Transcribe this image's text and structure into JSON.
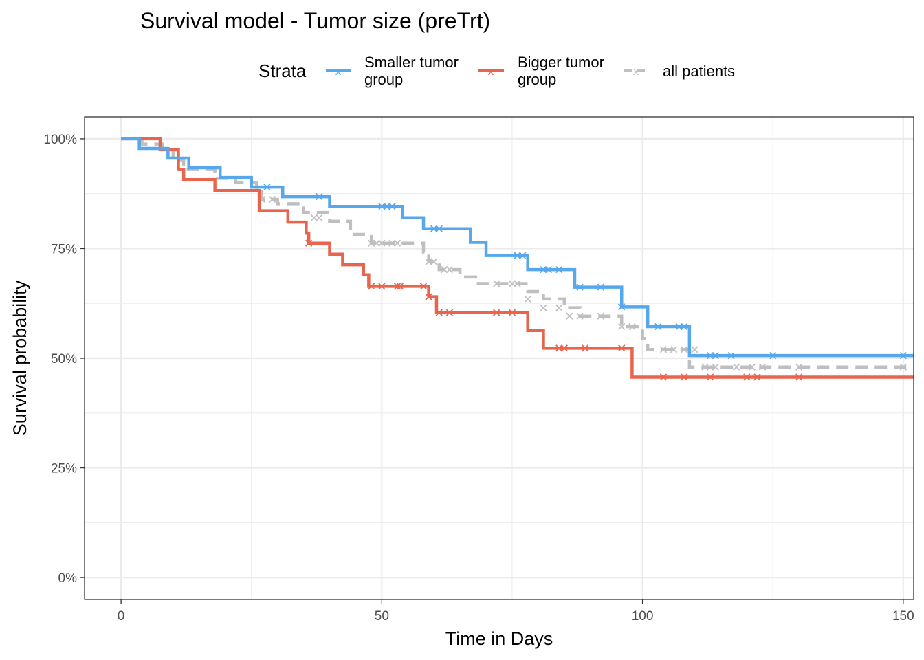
{
  "chart_data": {
    "type": "line",
    "subtype": "kaplan-meier-step",
    "title": "Survival model - Tumor size (preTrt)",
    "xlabel": "Time in Days",
    "ylabel": "Survival probability",
    "xlim": [
      -7,
      152
    ],
    "ylim": [
      -0.05,
      1.05
    ],
    "x_ticks": [
      0,
      50,
      100,
      150
    ],
    "x_tick_labels": [
      "0",
      "50",
      "100",
      "150"
    ],
    "y_ticks": [
      0,
      0.25,
      0.5,
      0.75,
      1.0
    ],
    "y_tick_labels": [
      "0%",
      "25%",
      "50%",
      "75%",
      "100%"
    ],
    "grid": true,
    "legend": {
      "title": "Strata",
      "position": "top",
      "entries": [
        {
          "label_line1": "Smaller tumor",
          "label_line2": "group"
        },
        {
          "label_line1": "Bigger tumor",
          "label_line2": "group"
        },
        {
          "label_line1": "all patients",
          "label_line2": ""
        }
      ]
    },
    "series": [
      {
        "key": "smaller",
        "color": "#56a7eb",
        "dashed": false,
        "steps": [
          [
            0,
            1.0
          ],
          [
            3.5,
            0.978
          ],
          [
            9,
            0.956
          ],
          [
            13,
            0.934
          ],
          [
            19,
            0.912
          ],
          [
            25,
            0.89
          ],
          [
            31,
            0.868
          ],
          [
            40,
            0.846
          ],
          [
            54,
            0.82
          ],
          [
            58,
            0.795
          ],
          [
            67,
            0.764
          ],
          [
            70,
            0.734
          ],
          [
            78,
            0.702
          ],
          [
            87,
            0.662
          ],
          [
            96,
            0.617
          ],
          [
            101,
            0.572
          ],
          [
            109,
            0.506
          ]
        ],
        "censor": [
          [
            28,
            0.89
          ],
          [
            38,
            0.868
          ],
          [
            50,
            0.846
          ],
          [
            51,
            0.846
          ],
          [
            52,
            0.846
          ],
          [
            60,
            0.795
          ],
          [
            61,
            0.795
          ],
          [
            76,
            0.734
          ],
          [
            77,
            0.734
          ],
          [
            81,
            0.702
          ],
          [
            82,
            0.702
          ],
          [
            84,
            0.702
          ],
          [
            88,
            0.662
          ],
          [
            92,
            0.662
          ],
          [
            96,
            0.617
          ],
          [
            103,
            0.572
          ],
          [
            107,
            0.572
          ],
          [
            108,
            0.572
          ],
          [
            113,
            0.506
          ],
          [
            114,
            0.506
          ],
          [
            117,
            0.506
          ],
          [
            125,
            0.506
          ],
          [
            150,
            0.506
          ]
        ]
      },
      {
        "key": "bigger",
        "color": "#e8644d",
        "dashed": false,
        "steps": [
          [
            0,
            1.0
          ],
          [
            7.5,
            0.975
          ],
          [
            11,
            0.93
          ],
          [
            12,
            0.907
          ],
          [
            18,
            0.882
          ],
          [
            26.5,
            0.836
          ],
          [
            32,
            0.81
          ],
          [
            35.5,
            0.785
          ],
          [
            36,
            0.762
          ],
          [
            40,
            0.737
          ],
          [
            42.5,
            0.713
          ],
          [
            46.5,
            0.69
          ],
          [
            47.5,
            0.664
          ],
          [
            59,
            0.64
          ],
          [
            60.5,
            0.604
          ],
          [
            78,
            0.563
          ],
          [
            81,
            0.523
          ],
          [
            98,
            0.457
          ]
        ],
        "censor": [
          [
            36,
            0.762
          ],
          [
            48,
            0.664
          ],
          [
            50,
            0.664
          ],
          [
            53,
            0.664
          ],
          [
            53.5,
            0.664
          ],
          [
            58,
            0.664
          ],
          [
            59,
            0.64
          ],
          [
            61,
            0.604
          ],
          [
            63,
            0.604
          ],
          [
            72,
            0.604
          ],
          [
            75,
            0.604
          ],
          [
            84,
            0.523
          ],
          [
            85,
            0.523
          ],
          [
            89,
            0.523
          ],
          [
            96,
            0.523
          ],
          [
            104,
            0.457
          ],
          [
            108,
            0.457
          ],
          [
            113,
            0.457
          ],
          [
            120,
            0.457
          ],
          [
            122,
            0.457
          ],
          [
            130,
            0.457
          ]
        ]
      },
      {
        "key": "all",
        "color": "#bfbfbf",
        "dashed": true,
        "steps": [
          [
            0,
            1.0
          ],
          [
            4,
            0.988
          ],
          [
            8,
            0.976
          ],
          [
            10,
            0.952
          ],
          [
            12,
            0.93
          ],
          [
            18,
            0.91
          ],
          [
            22,
            0.9
          ],
          [
            26,
            0.88
          ],
          [
            27,
            0.862
          ],
          [
            30,
            0.852
          ],
          [
            35,
            0.832
          ],
          [
            40,
            0.812
          ],
          [
            44,
            0.782
          ],
          [
            48,
            0.762
          ],
          [
            58,
            0.742
          ],
          [
            59,
            0.72
          ],
          [
            61,
            0.702
          ],
          [
            65,
            0.685
          ],
          [
            68,
            0.67
          ],
          [
            78,
            0.652
          ],
          [
            81,
            0.635
          ],
          [
            85,
            0.615
          ],
          [
            88,
            0.596
          ],
          [
            96,
            0.572
          ],
          [
            100,
            0.545
          ],
          [
            101,
            0.52
          ],
          [
            109,
            0.48
          ]
        ],
        "censor": [
          [
            27,
            0.862
          ],
          [
            29,
            0.862
          ],
          [
            37,
            0.82
          ],
          [
            38,
            0.82
          ],
          [
            48,
            0.762
          ],
          [
            49,
            0.762
          ],
          [
            50,
            0.762
          ],
          [
            52,
            0.762
          ],
          [
            53,
            0.762
          ],
          [
            59,
            0.72
          ],
          [
            60,
            0.72
          ],
          [
            62,
            0.702
          ],
          [
            63,
            0.702
          ],
          [
            72,
            0.67
          ],
          [
            75,
            0.67
          ],
          [
            76,
            0.67
          ],
          [
            78,
            0.635
          ],
          [
            81,
            0.615
          ],
          [
            84,
            0.615
          ],
          [
            86,
            0.596
          ],
          [
            88,
            0.596
          ],
          [
            92,
            0.596
          ],
          [
            96,
            0.572
          ],
          [
            98,
            0.572
          ],
          [
            104,
            0.52
          ],
          [
            106,
            0.52
          ],
          [
            108,
            0.52
          ],
          [
            110,
            0.52
          ],
          [
            112,
            0.48
          ],
          [
            114,
            0.48
          ],
          [
            118,
            0.48
          ],
          [
            121,
            0.48
          ],
          [
            123,
            0.48
          ],
          [
            130,
            0.48
          ],
          [
            150,
            0.48
          ]
        ]
      }
    ]
  }
}
